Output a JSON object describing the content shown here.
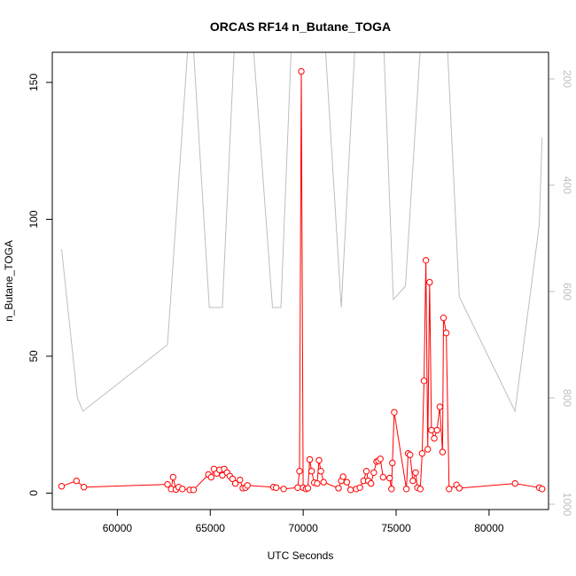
{
  "chart_data": {
    "type": "line",
    "title": "ORCAS RF14 n_Butane_TOGA",
    "xlabel": "UTC Seconds",
    "ylabel": "n_Butane_TOGA",
    "xlim": [
      56500,
      83200
    ],
    "ylim": [
      -6,
      161
    ],
    "y2lim": [
      1010,
      150
    ],
    "x_ticks": [
      60000,
      65000,
      70000,
      75000,
      80000
    ],
    "y_ticks": [
      0,
      50,
      100,
      150
    ],
    "y2_ticks": [
      200,
      400,
      600,
      800,
      1000
    ],
    "grid": false,
    "series": [
      {
        "role": "primary",
        "color": "#ff0000",
        "marker": "open-circle",
        "x": [
          57000,
          57800,
          58200,
          62700,
          62900,
          63000,
          63150,
          63300,
          63500,
          63900,
          64100,
          64900,
          65050,
          65200,
          65350,
          65500,
          65650,
          65750,
          65900,
          66050,
          66200,
          66350,
          66600,
          66750,
          66900,
          67000,
          68400,
          68550,
          68950,
          69700,
          69800,
          69900,
          70000,
          70150,
          70250,
          70350,
          70450,
          70600,
          70750,
          70850,
          70950,
          71100,
          71900,
          72050,
          72150,
          72350,
          72550,
          72850,
          73050,
          73250,
          73400,
          73500,
          73650,
          73800,
          73950,
          74050,
          74150,
          74300,
          74650,
          74750,
          74800,
          74900,
          75550,
          75650,
          75750,
          75900,
          76050,
          76150,
          76300,
          76400,
          76500,
          76600,
          76700,
          76800,
          76900,
          77050,
          77200,
          77350,
          77500,
          77550,
          77700,
          77850,
          78250,
          78400,
          81400,
          82700,
          82850
        ],
        "values": [
          2.5,
          4.5,
          2.2,
          3.2,
          1.5,
          5.8,
          1.3,
          2.2,
          1.5,
          1.2,
          1.2,
          6.8,
          5.8,
          8.8,
          7.2,
          8.5,
          6.5,
          8.8,
          7.5,
          6.2,
          5.2,
          3.5,
          4.8,
          1.8,
          2.0,
          2.8,
          2.2,
          2.0,
          1.5,
          2.0,
          8.0,
          154.0,
          2.0,
          1.5,
          1.8,
          12.3,
          8.0,
          3.8,
          3.5,
          12.0,
          8.0,
          4.0,
          1.8,
          4.5,
          6.0,
          4.0,
          1.2,
          1.5,
          2.0,
          4.5,
          8.0,
          4.5,
          3.5,
          7.5,
          11.5,
          11.8,
          12.5,
          5.8,
          5.5,
          1.5,
          11.0,
          29.5,
          1.5,
          14.5,
          14.0,
          4.5,
          7.5,
          2.0,
          1.5,
          14.5,
          41.0,
          85.0,
          16.0,
          77.0,
          23.0,
          20.0,
          23.0,
          31.5,
          15.0,
          64.0,
          58.5,
          1.5,
          3.0,
          1.8,
          3.5,
          2.0,
          1.5
        ]
      },
      {
        "role": "secondary-axis",
        "color": "#bebebe",
        "marker": "none",
        "x": [
          57000,
          57850,
          58150,
          62700,
          63950,
          64950,
          65650,
          66400,
          67150,
          68350,
          68800,
          69450,
          70350,
          71050,
          72050,
          72900,
          73650,
          74250,
          74850,
          75500,
          76450,
          76650,
          77250,
          77650,
          78400,
          81400,
          82700,
          82850
        ],
        "values": [
          520,
          800,
          825,
          700,
          60,
          630,
          630,
          60,
          60,
          630,
          630,
          60,
          60,
          60,
          630,
          60,
          60,
          60,
          615,
          590,
          60,
          60,
          60,
          60,
          610,
          825,
          475,
          310
        ]
      }
    ]
  }
}
